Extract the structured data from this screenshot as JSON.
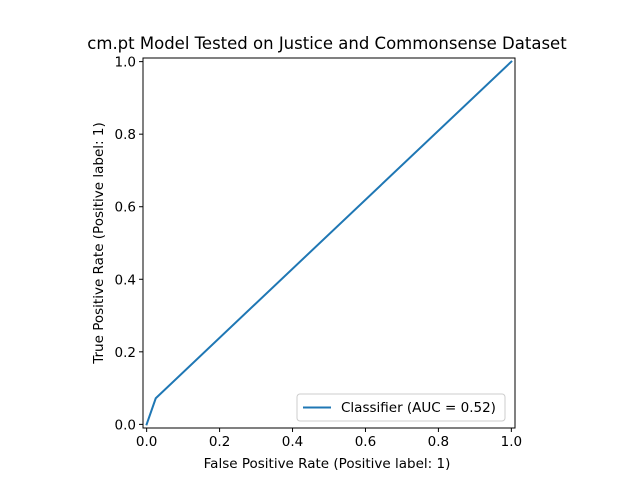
{
  "chart_data": {
    "type": "line",
    "title": "cm.pt Model Tested on Justice and Commonsense Dataset",
    "xlabel": "False Positive Rate (Positive label: 1)",
    "ylabel": "True Positive Rate (Positive label: 1)",
    "xlim": [
      -0.01,
      1.01
    ],
    "ylim": [
      -0.01,
      1.01
    ],
    "xticks": [
      "0.0",
      "0.2",
      "0.4",
      "0.6",
      "0.8",
      "1.0"
    ],
    "yticks": [
      "0.0",
      "0.2",
      "0.4",
      "0.6",
      "0.8",
      "1.0"
    ],
    "grid": false,
    "legend_position": "lower-right",
    "series": [
      {
        "name": "Classifier (AUC = 0.52)",
        "color": "#1f77b4",
        "x": [
          0.0,
          0.025,
          1.0
        ],
        "y": [
          0.0,
          0.072,
          1.0
        ]
      }
    ]
  }
}
